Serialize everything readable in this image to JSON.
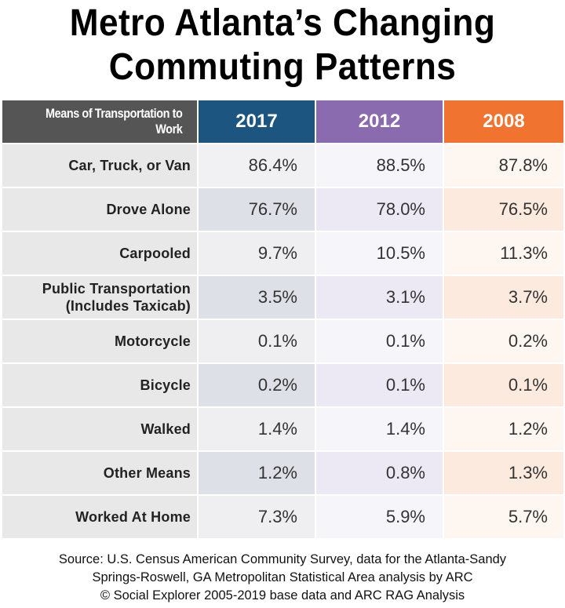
{
  "title_line1": "Metro Atlanta’s Changing",
  "title_line2": "Commuting Patterns",
  "chart_data": {
    "type": "table",
    "title": "Metro Atlanta’s Changing Commuting Patterns",
    "columns": [
      {
        "label": "Means of Transportation to Work",
        "color": "#555555"
      },
      {
        "label": "2017",
        "color": "#1b5580"
      },
      {
        "label": "2012",
        "color": "#8a6bb0"
      },
      {
        "label": "2008",
        "color": "#f07330"
      }
    ],
    "rows": [
      {
        "label": "Car, Truck, or Van",
        "values": [
          "86.4%",
          "88.5%",
          "87.8%"
        ]
      },
      {
        "label": "Drove Alone",
        "values": [
          "76.7%",
          "78.0%",
          "76.5%"
        ]
      },
      {
        "label": "Carpooled",
        "values": [
          "9.7%",
          "10.5%",
          "11.3%"
        ]
      },
      {
        "label": "Public Transportation (Includes Taxicab)",
        "label_line1": "Public Transportation",
        "label_line2": "(Includes Taxicab)",
        "values": [
          "3.5%",
          "3.1%",
          "3.7%"
        ]
      },
      {
        "label": "Motorcycle",
        "values": [
          "0.1%",
          "0.1%",
          "0.2%"
        ]
      },
      {
        "label": "Bicycle",
        "values": [
          "0.2%",
          "0.1%",
          "0.1%"
        ]
      },
      {
        "label": "Walked",
        "values": [
          "1.4%",
          "1.4%",
          "1.2%"
        ]
      },
      {
        "label": "Other Means",
        "values": [
          "1.2%",
          "0.8%",
          "1.3%"
        ]
      },
      {
        "label": "Worked At Home",
        "values": [
          "7.3%",
          "5.9%",
          "5.7%"
        ]
      }
    ]
  },
  "source": {
    "line1": "Source: U.S. Census American Community Survey, data for the Atlanta-Sandy",
    "line2": "Springs-Roswell, GA Metropolitan Statistical Area analysis by ARC",
    "line3": "© Social Explorer 2005-2019 base data and ARC RAG Analysis"
  }
}
